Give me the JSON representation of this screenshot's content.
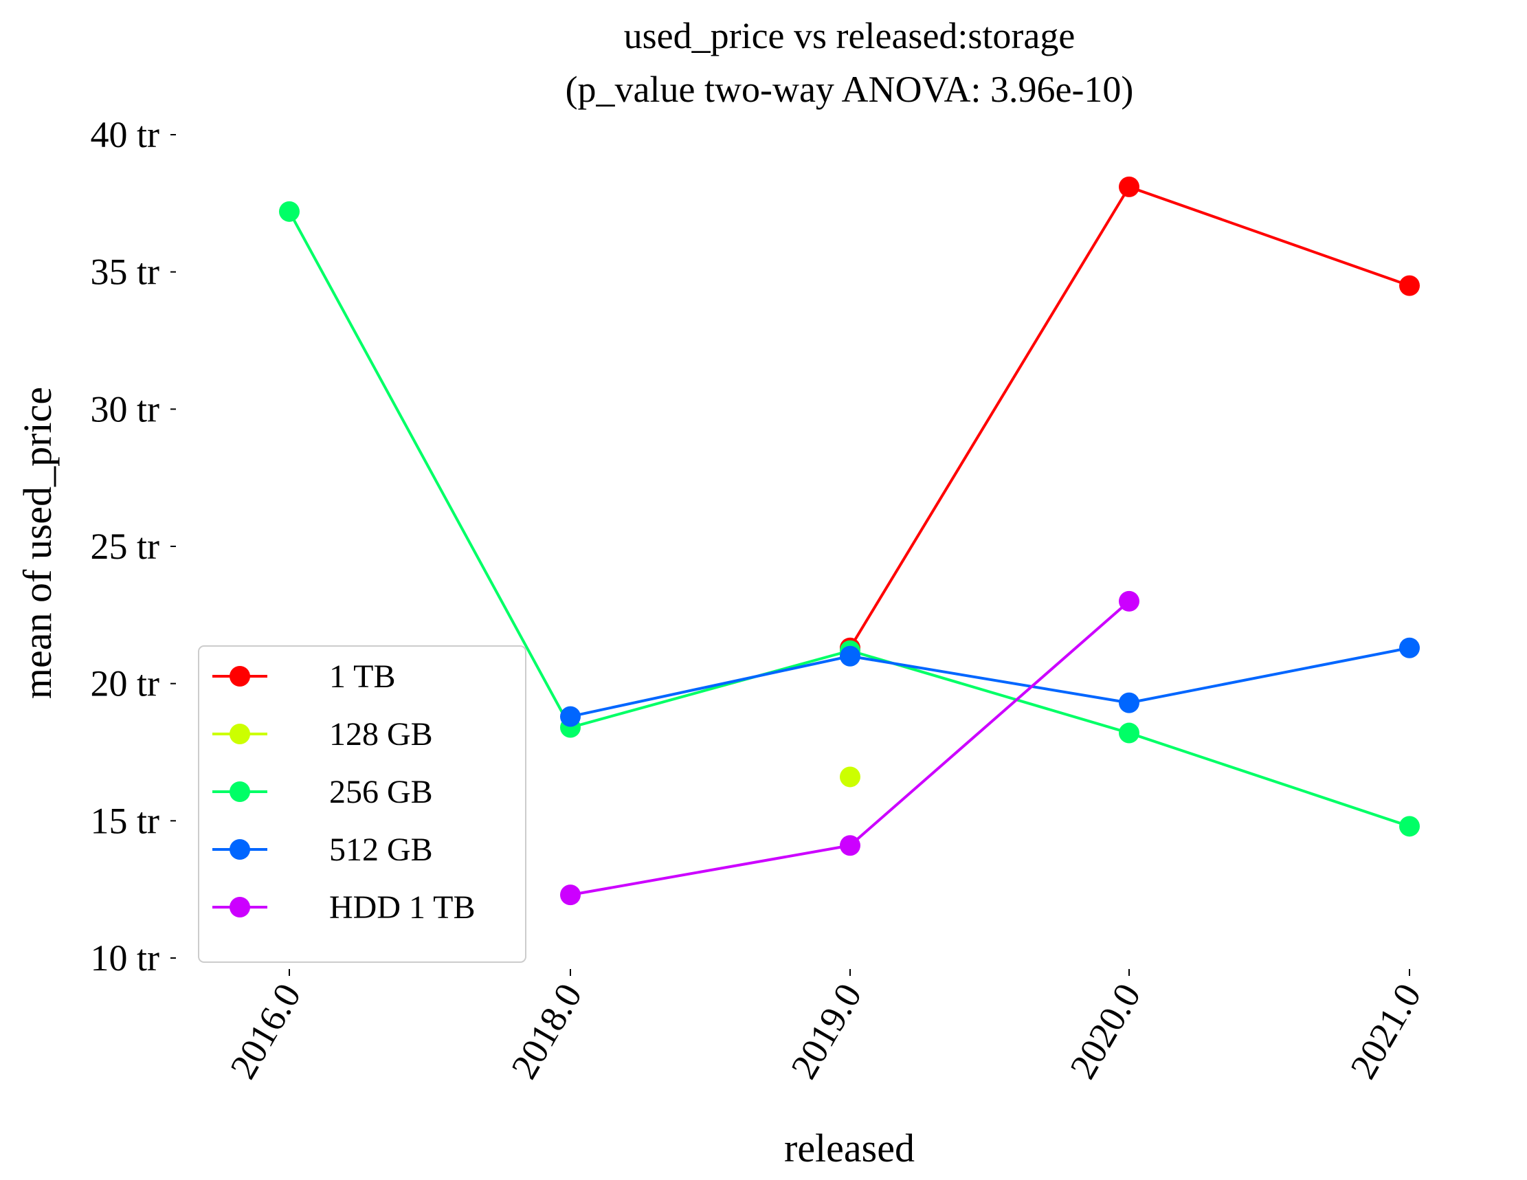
{
  "chart_data": {
    "type": "line",
    "title_line1": "used_price vs released:storage",
    "title_line2": "(p_value two-way ANOVA: 3.96e-10)",
    "xlabel": "released",
    "ylabel": "mean of used_price",
    "categories": [
      "2016.0",
      "2018.0",
      "2019.0",
      "2020.0",
      "2021.0"
    ],
    "ylim": [
      10,
      40
    ],
    "y_ticks": [
      {
        "value": 10,
        "label": "10 tr"
      },
      {
        "value": 15,
        "label": "15 tr"
      },
      {
        "value": 20,
        "label": "20 tr"
      },
      {
        "value": 25,
        "label": "25 tr"
      },
      {
        "value": 30,
        "label": "30 tr"
      },
      {
        "value": 35,
        "label": "35 tr"
      },
      {
        "value": 40,
        "label": "40 tr"
      }
    ],
    "grid": false,
    "legend_position": "lower-left",
    "series": [
      {
        "name": "1 TB",
        "color": "#ff0000",
        "values": [
          null,
          null,
          21.3,
          38.1,
          34.5
        ]
      },
      {
        "name": "128 GB",
        "color": "#ccff00",
        "values": [
          null,
          null,
          16.6,
          null,
          null
        ]
      },
      {
        "name": "256 GB",
        "color": "#00ff66",
        "values": [
          37.2,
          18.4,
          21.2,
          18.2,
          14.8
        ]
      },
      {
        "name": "512 GB",
        "color": "#0066ff",
        "values": [
          null,
          18.8,
          21.0,
          19.3,
          21.3
        ]
      },
      {
        "name": "HDD 1 TB",
        "color": "#cc00ff",
        "values": [
          null,
          12.3,
          14.1,
          23.0,
          null
        ]
      }
    ]
  }
}
